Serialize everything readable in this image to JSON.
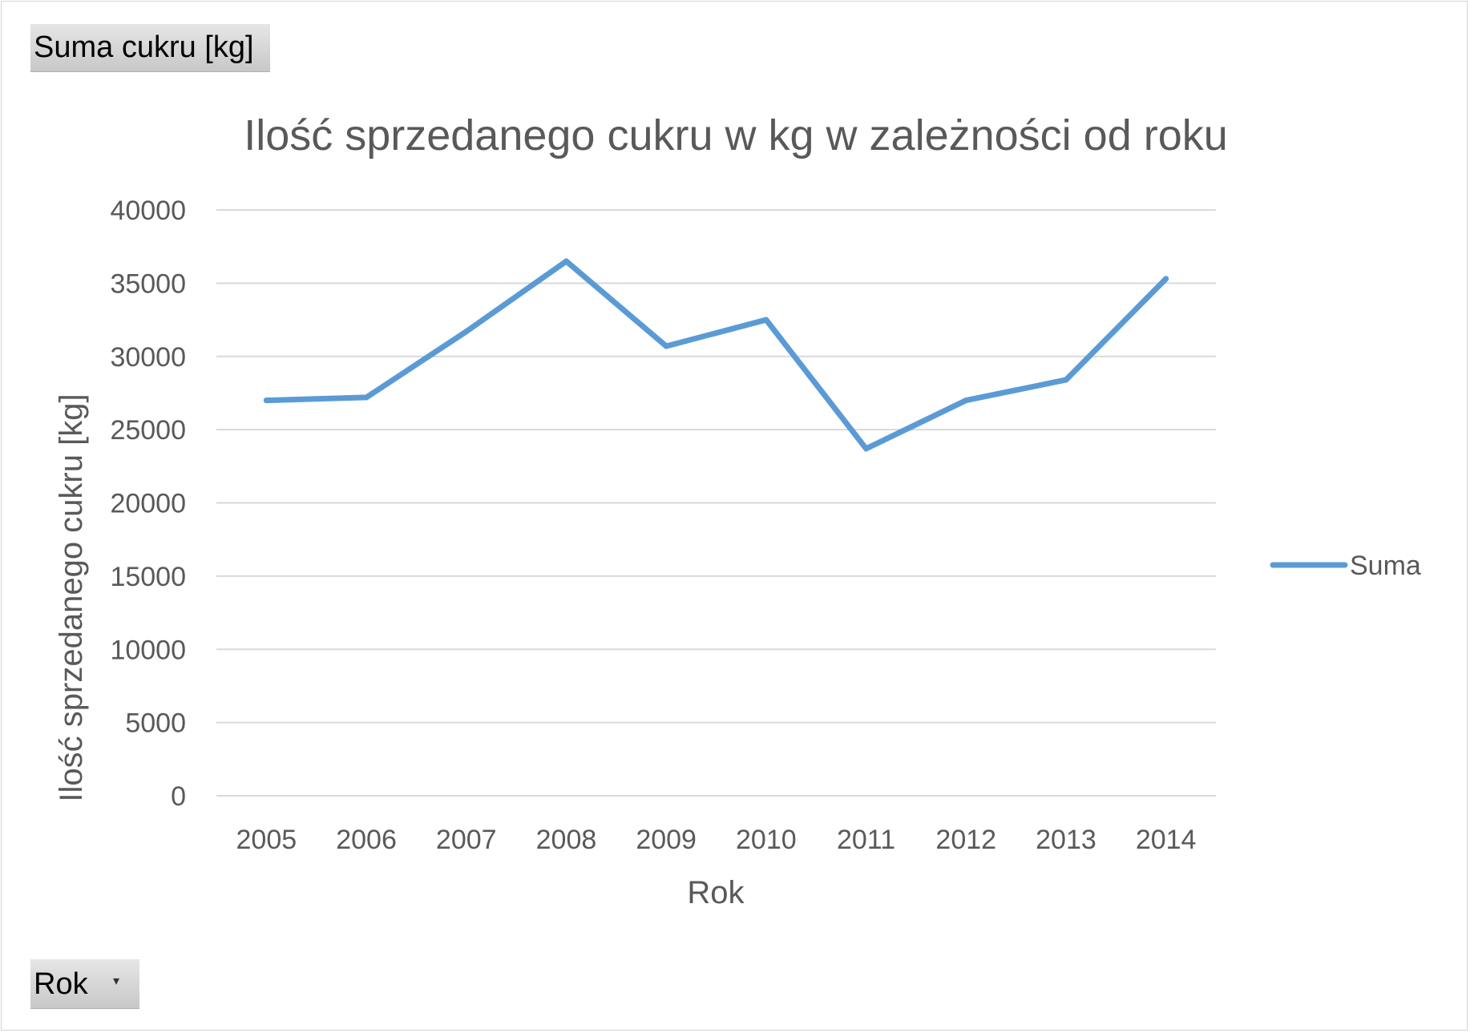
{
  "field_buttons": {
    "values_label": "Suma cukru [kg]",
    "axis_label": "Rok"
  },
  "chart_data": {
    "type": "line",
    "title": "Ilość sprzedanego cukru w kg w zależności od roku",
    "xlabel": "Rok",
    "ylabel": "Ilość sprzedanego cukru [kg]",
    "categories": [
      "2005",
      "2006",
      "2007",
      "2008",
      "2009",
      "2010",
      "2011",
      "2012",
      "2013",
      "2014"
    ],
    "series": [
      {
        "name": "Suma",
        "color": "#5b9bd5",
        "values": [
          27000,
          27200,
          31700,
          36500,
          30700,
          32500,
          23700,
          27000,
          28400,
          35300
        ]
      }
    ],
    "ylim": [
      0,
      40000
    ],
    "yticks": [
      "0",
      "5000",
      "10000",
      "15000",
      "20000",
      "25000",
      "30000",
      "35000",
      "40000"
    ],
    "grid": true,
    "legend_position": "right"
  }
}
